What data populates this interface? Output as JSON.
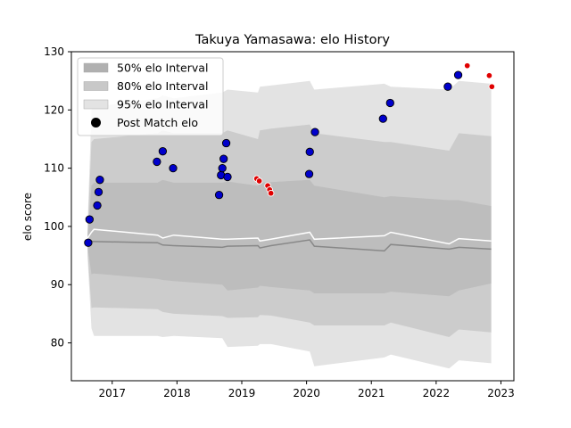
{
  "chart_data": {
    "type": "area",
    "title": "Takuya Yamasawa: elo History",
    "xlabel": "",
    "ylabel": "elo score",
    "xlim": [
      2016.37,
      2023.2
    ],
    "ylim": [
      73.5,
      130
    ],
    "x_ticks": [
      2017,
      2018,
      2019,
      2020,
      2021,
      2022,
      2023
    ],
    "x_tick_labels": [
      "2017",
      "2018",
      "2019",
      "2020",
      "2021",
      "2022",
      "2023"
    ],
    "y_ticks": [
      80,
      90,
      100,
      110,
      120,
      130
    ],
    "y_tick_labels": [
      "80",
      "90",
      "100",
      "110",
      "120",
      "130"
    ],
    "legend_position": "top-left",
    "legend": [
      {
        "label": "50% elo Interval",
        "color": "#b0b0b0",
        "kind": "patch"
      },
      {
        "label": "80% elo Interval",
        "color": "#c8c8c8",
        "kind": "patch"
      },
      {
        "label": "95% elo Interval",
        "color": "#e3e3e3",
        "kind": "patch"
      },
      {
        "label": "Post Match elo",
        "color": "#000000",
        "kind": "marker"
      }
    ],
    "bands": {
      "x": [
        2016.62,
        2016.68,
        2016.72,
        2017.7,
        2017.78,
        2017.95,
        2018.7,
        2018.78,
        2019.25,
        2019.28,
        2019.45,
        2020.05,
        2020.12,
        2021.2,
        2021.3,
        2022.2,
        2022.35,
        2022.85
      ],
      "p95_upper": [
        100.5,
        120.0,
        120.5,
        122.0,
        122.5,
        122.0,
        123.0,
        123.5,
        123.0,
        124.0,
        124.2,
        125.0,
        123.5,
        124.5,
        124.0,
        123.5,
        125.0,
        124.5
      ],
      "p80_upper": [
        99.0,
        114.5,
        115.0,
        116.0,
        116.5,
        116.0,
        116.0,
        116.5,
        115.0,
        116.5,
        116.8,
        117.5,
        116.0,
        114.5,
        114.5,
        113.0,
        116.0,
        115.5
      ],
      "p50_upper": [
        98.5,
        107.0,
        107.5,
        107.5,
        108.0,
        107.5,
        107.5,
        107.7,
        107.0,
        107.5,
        107.6,
        108.0,
        107.0,
        105.0,
        105.2,
        104.5,
        104.5,
        103.5
      ],
      "p50_lower": [
        96.5,
        91.8,
        91.9,
        91.0,
        90.8,
        90.6,
        90.0,
        89.0,
        89.5,
        89.8,
        89.6,
        89.0,
        88.5,
        88.5,
        88.8,
        88.0,
        89.0,
        90.2
      ],
      "p80_lower": [
        95.5,
        86.0,
        86.1,
        85.8,
        85.3,
        85.0,
        84.6,
        84.3,
        84.4,
        84.8,
        84.7,
        83.5,
        83.0,
        83.0,
        83.5,
        81.0,
        82.3,
        81.8
      ],
      "p95_lower": [
        94.5,
        82.5,
        81.2,
        81.2,
        81.0,
        81.2,
        80.8,
        79.3,
        79.5,
        79.8,
        79.8,
        78.5,
        76.0,
        77.5,
        78.0,
        75.6,
        77.0,
        76.5
      ]
    },
    "series": [
      {
        "kind": "mean_line",
        "color": "#ffffff",
        "x": [
          2016.62,
          2016.68,
          2016.72,
          2017.7,
          2017.78,
          2017.95,
          2018.7,
          2018.78,
          2019.25,
          2019.28,
          2019.45,
          2020.05,
          2020.12,
          2021.2,
          2021.3,
          2022.2,
          2022.35,
          2022.85
        ],
        "y": [
          98.0,
          99.0,
          99.5,
          98.5,
          98.0,
          98.5,
          97.8,
          97.8,
          98.0,
          97.5,
          97.8,
          99.0,
          97.8,
          98.4,
          99.0,
          97.0,
          97.9,
          97.5
        ]
      },
      {
        "kind": "median_line",
        "color": "#888888",
        "x": [
          2016.62,
          2016.68,
          2016.72,
          2017.7,
          2017.78,
          2017.95,
          2018.7,
          2018.78,
          2019.25,
          2019.28,
          2019.45,
          2020.05,
          2020.12,
          2021.2,
          2021.3,
          2022.2,
          2022.35,
          2022.85
        ],
        "y": [
          97.4,
          97.4,
          97.4,
          97.2,
          96.8,
          96.7,
          96.4,
          96.6,
          96.7,
          96.3,
          96.7,
          97.7,
          96.6,
          95.8,
          96.9,
          96.1,
          96.4,
          96.1
        ]
      },
      {
        "kind": "post_match",
        "color": "#0000cc",
        "x": [
          2016.63,
          2016.65,
          2016.77,
          2016.79,
          2016.81,
          2017.69,
          2017.78,
          2017.94,
          2018.65,
          2018.68,
          2018.7,
          2018.72,
          2018.76,
          2018.78,
          2020.04,
          2020.05,
          2020.13,
          2021.18,
          2021.29,
          2022.18,
          2022.34
        ],
        "y": [
          97.2,
          101.2,
          103.6,
          105.9,
          108.0,
          111.1,
          112.9,
          110.0,
          105.4,
          108.8,
          110.0,
          111.6,
          114.3,
          108.5,
          109.0,
          112.8,
          116.2,
          118.5,
          121.2,
          124.0,
          126.0
        ]
      },
      {
        "kind": "upcoming",
        "color": "#e00000",
        "x": [
          2019.23,
          2019.27,
          2019.4,
          2019.43,
          2019.45,
          2022.48,
          2022.82,
          2022.86
        ],
        "y": [
          108.2,
          107.8,
          107.0,
          106.3,
          105.7,
          127.6,
          125.9,
          124.0
        ]
      }
    ]
  }
}
